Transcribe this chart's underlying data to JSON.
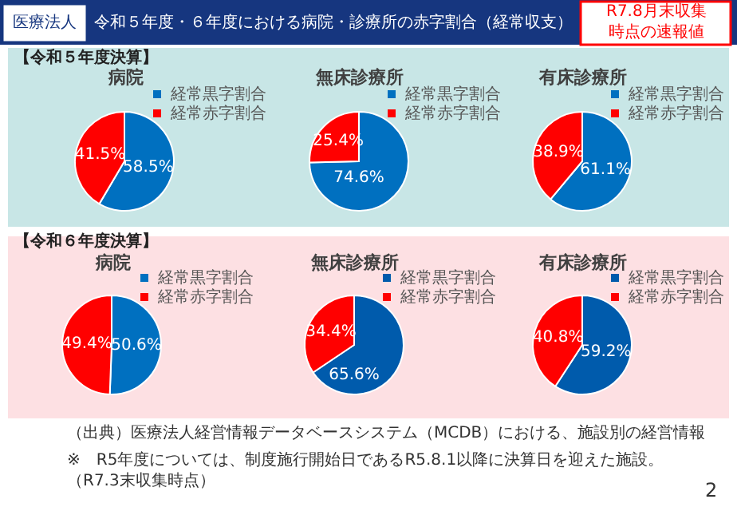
{
  "chart_data": [
    {
      "type": "other",
      "title": "令和５年度・６年度における病院・診療所の赤字割合（経常収支）",
      "annotations": [
        "医療法人",
        "R7.8月末収集時点の速報値",
        "（出典）医療法人経営情報データベースシステム（MCDB）における、施設別の経営情報",
        "※　R5年度については、制度施行開始日であるR5.8.1以降に決算日を迎えた施設。（R7.3末収集時点）",
        "2"
      ]
    },
    {
      "type": "pie",
      "subtitle": "【令和５年度決算】",
      "title": "病院",
      "categories": [
        "経常黒字割合",
        "経常赤字割合"
      ],
      "values": [
        58.5,
        41.5
      ],
      "colors": [
        "#0070c0",
        "#ff0000"
      ],
      "value_labels": [
        "58.5%",
        "41.5%"
      ],
      "legend": "top right"
    },
    {
      "type": "pie",
      "title": "無床診療所",
      "categories": [
        "経常黒字割合",
        "経常赤字割合"
      ],
      "values": [
        74.6,
        25.4
      ],
      "colors": [
        "#0070c0",
        "#ff0000"
      ],
      "value_labels": [
        "74.6%",
        "25.4%"
      ],
      "legend": "top right"
    },
    {
      "type": "pie",
      "title": "有床診療所",
      "categories": [
        "経常黒字割合",
        "経常赤字割合"
      ],
      "values": [
        61.1,
        38.9
      ],
      "colors": [
        "#0070c0",
        "#ff0000"
      ],
      "value_labels": [
        "61.1%",
        "38.9%"
      ],
      "legend": "top right"
    },
    {
      "type": "pie",
      "subtitle": "【令和６年度決算】",
      "title": "病院",
      "categories": [
        "経常黒字割合",
        "経常赤字割合"
      ],
      "values": [
        50.6,
        49.4
      ],
      "colors": [
        "#0070c0",
        "#ff0000"
      ],
      "value_labels": [
        "50.6%",
        "49.4%"
      ],
      "legend": "top right"
    },
    {
      "type": "pie",
      "title": "無床診療所",
      "categories": [
        "経常黒字割合",
        "経常赤字割合"
      ],
      "values": [
        65.6,
        34.4
      ],
      "colors": [
        "#005bac",
        "#ff0000"
      ],
      "value_labels": [
        "65.6%",
        "34.4%"
      ],
      "legend": "top right"
    },
    {
      "type": "pie",
      "title": "有床診療所",
      "categories": [
        "経常黒字割合",
        "経常赤字割合"
      ],
      "values": [
        59.2,
        40.8
      ],
      "colors": [
        "#005bac",
        "#ff0000"
      ],
      "value_labels": [
        "59.2%",
        "40.8%"
      ],
      "legend": "top right"
    }
  ]
}
